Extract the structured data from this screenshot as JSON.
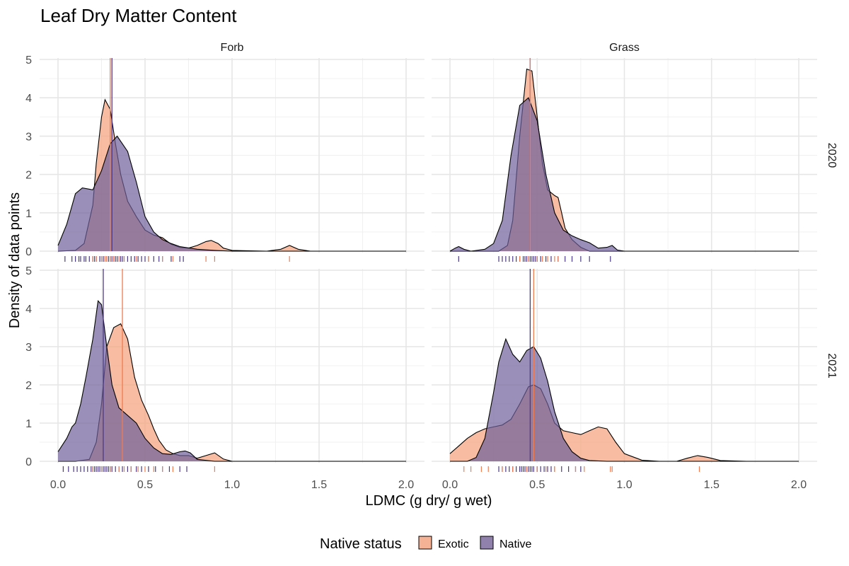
{
  "chart_data": {
    "type": "area",
    "title": "Leaf Dry Matter Content",
    "xlabel": "LDMC (g dry/ g wet)",
    "ylabel": "Density of data points",
    "xlim": [
      0,
      2
    ],
    "ylim": [
      0,
      5
    ],
    "x_ticks": [
      "0.0",
      "0.5",
      "1.0",
      "1.5",
      "2.0"
    ],
    "y_ticks": [
      "0",
      "1",
      "2",
      "3",
      "4",
      "5"
    ],
    "grid": true,
    "legend": {
      "title": "Native status",
      "position": "bottom",
      "entries": [
        {
          "label": "Exotic",
          "color": "#f4a582"
        },
        {
          "label": "Native",
          "color": "#7b6a9e"
        }
      ]
    },
    "colors": {
      "exotic_fill": "#f4a582",
      "native_fill": "#6e5f9a",
      "exotic_line": "#f07c50",
      "native_line": "#4b3a86"
    },
    "col_facets": [
      "Forb",
      "Grass"
    ],
    "row_facets": [
      "2020",
      "2021"
    ],
    "panels": [
      {
        "row": "2020",
        "col": "Forb",
        "series": [
          {
            "name": "Native",
            "mean": 0.31,
            "x": [
              0.0,
              0.05,
              0.1,
              0.14,
              0.2,
              0.25,
              0.3,
              0.34,
              0.4,
              0.45,
              0.5,
              0.55,
              0.6,
              0.65,
              0.7,
              0.8,
              0.9,
              1.0,
              2.0
            ],
            "y": [
              0.15,
              0.7,
              1.5,
              1.65,
              1.6,
              2.1,
              2.8,
              3.0,
              2.6,
              1.8,
              0.9,
              0.5,
              0.3,
              0.2,
              0.12,
              0.05,
              0.02,
              0.0,
              0.0
            ]
          },
          {
            "name": "Exotic",
            "mean": 0.3,
            "x": [
              0.0,
              0.1,
              0.15,
              0.2,
              0.22,
              0.25,
              0.27,
              0.3,
              0.33,
              0.36,
              0.4,
              0.45,
              0.5,
              0.55,
              0.6,
              0.65,
              0.7,
              0.75,
              0.8,
              0.85,
              0.88,
              0.92,
              0.95,
              1.0,
              1.2,
              1.28,
              1.33,
              1.38,
              1.45,
              2.0
            ],
            "y": [
              0.0,
              0.02,
              0.2,
              1.2,
              2.3,
              3.5,
              3.95,
              3.7,
              2.8,
              2.0,
              1.3,
              0.9,
              0.55,
              0.42,
              0.35,
              0.18,
              0.1,
              0.08,
              0.15,
              0.25,
              0.28,
              0.2,
              0.08,
              0.02,
              0.0,
              0.05,
              0.15,
              0.05,
              0.0,
              0.0
            ]
          }
        ],
        "rug": {
          "Native": [
            0.04,
            0.08,
            0.1,
            0.12,
            0.13,
            0.15,
            0.16,
            0.18,
            0.2,
            0.21,
            0.22,
            0.24,
            0.25,
            0.26,
            0.27,
            0.28,
            0.29,
            0.3,
            0.31,
            0.32,
            0.33,
            0.34,
            0.35,
            0.36,
            0.37,
            0.38,
            0.4,
            0.42,
            0.44,
            0.46,
            0.48,
            0.5,
            0.52,
            0.55,
            0.58,
            0.6,
            0.65,
            0.7,
            0.72
          ],
          "Exotic": [
            0.2,
            0.22,
            0.25,
            0.27,
            0.28,
            0.3,
            0.32,
            0.35,
            0.38,
            0.45,
            0.52,
            0.6,
            0.66,
            0.85,
            0.9,
            1.33
          ]
        }
      },
      {
        "row": "2020",
        "col": "Grass",
        "series": [
          {
            "name": "Native",
            "mean": 0.46,
            "x": [
              0.0,
              0.03,
              0.05,
              0.08,
              0.12,
              0.2,
              0.25,
              0.3,
              0.35,
              0.4,
              0.45,
              0.5,
              0.55,
              0.6,
              0.65,
              0.7,
              0.75,
              0.8,
              0.85,
              0.9,
              0.93,
              0.96,
              1.0,
              2.0
            ],
            "y": [
              0.0,
              0.08,
              0.12,
              0.05,
              0.0,
              0.05,
              0.2,
              0.8,
              2.5,
              3.8,
              4.0,
              3.4,
              2.0,
              1.0,
              0.55,
              0.4,
              0.3,
              0.22,
              0.08,
              0.1,
              0.15,
              0.03,
              0.0,
              0.0
            ]
          },
          {
            "name": "Exotic",
            "mean": 0.46,
            "x": [
              0.0,
              0.28,
              0.33,
              0.36,
              0.4,
              0.44,
              0.47,
              0.5,
              0.53,
              0.56,
              0.6,
              0.62,
              0.64,
              0.66,
              0.7,
              0.75,
              0.8,
              2.0
            ],
            "y": [
              0.0,
              0.0,
              0.15,
              0.8,
              3.0,
              4.75,
              4.7,
              3.5,
              2.3,
              1.6,
              1.45,
              1.4,
              1.0,
              0.6,
              0.3,
              0.1,
              0.0,
              0.0
            ]
          }
        ],
        "rug": {
          "Native": [
            0.05,
            0.28,
            0.3,
            0.32,
            0.34,
            0.36,
            0.38,
            0.4,
            0.42,
            0.43,
            0.44,
            0.45,
            0.46,
            0.47,
            0.48,
            0.49,
            0.5,
            0.52,
            0.55,
            0.58,
            0.62,
            0.66,
            0.7,
            0.75,
            0.8,
            0.92
          ],
          "Exotic": [
            0.4,
            0.45,
            0.5,
            0.53,
            0.56,
            0.6,
            0.62
          ]
        }
      },
      {
        "row": "2021",
        "col": "Forb",
        "series": [
          {
            "name": "Native",
            "mean": 0.26,
            "x": [
              0.0,
              0.05,
              0.08,
              0.1,
              0.13,
              0.16,
              0.2,
              0.23,
              0.25,
              0.28,
              0.31,
              0.35,
              0.4,
              0.45,
              0.5,
              0.55,
              0.6,
              0.65,
              0.7,
              0.73,
              0.76,
              0.8,
              0.9,
              2.0
            ],
            "y": [
              0.25,
              0.6,
              0.9,
              1.0,
              1.5,
              2.2,
              3.2,
              4.2,
              4.1,
              3.0,
              2.0,
              1.4,
              1.2,
              1.0,
              0.6,
              0.35,
              0.2,
              0.18,
              0.25,
              0.27,
              0.22,
              0.05,
              0.0,
              0.0
            ]
          },
          {
            "name": "Exotic",
            "mean": 0.37,
            "x": [
              0.0,
              0.1,
              0.18,
              0.22,
              0.25,
              0.28,
              0.32,
              0.36,
              0.4,
              0.44,
              0.48,
              0.52,
              0.55,
              0.58,
              0.62,
              0.66,
              0.7,
              0.75,
              0.8,
              0.85,
              0.9,
              0.95,
              1.0,
              2.0
            ],
            "y": [
              0.0,
              0.0,
              0.05,
              0.5,
              1.5,
              3.0,
              3.5,
              3.6,
              3.2,
              2.2,
              1.6,
              1.2,
              0.85,
              0.55,
              0.3,
              0.2,
              0.15,
              0.15,
              0.08,
              0.15,
              0.22,
              0.06,
              0.0,
              0.0
            ]
          }
        ],
        "rug": {
          "Native": [
            0.03,
            0.06,
            0.09,
            0.11,
            0.13,
            0.15,
            0.17,
            0.19,
            0.2,
            0.21,
            0.22,
            0.23,
            0.24,
            0.25,
            0.26,
            0.27,
            0.28,
            0.29,
            0.3,
            0.31,
            0.33,
            0.35,
            0.37,
            0.4,
            0.42,
            0.45,
            0.48,
            0.52,
            0.56,
            0.6,
            0.64,
            0.7,
            0.74
          ],
          "Exotic": [
            0.2,
            0.25,
            0.3,
            0.35,
            0.38,
            0.42,
            0.46,
            0.5,
            0.55,
            0.6,
            0.66,
            0.9
          ]
        }
      },
      {
        "row": "2021",
        "col": "Grass",
        "series": [
          {
            "name": "Native",
            "mean": 0.46,
            "x": [
              0.0,
              0.1,
              0.15,
              0.2,
              0.25,
              0.28,
              0.32,
              0.36,
              0.4,
              0.44,
              0.48,
              0.52,
              0.56,
              0.6,
              0.65,
              0.7,
              0.75,
              0.8,
              0.9,
              1.0,
              2.0
            ],
            "y": [
              0.0,
              0.0,
              0.1,
              0.6,
              1.8,
              2.6,
              3.2,
              2.8,
              2.6,
              2.9,
              3.0,
              2.7,
              2.1,
              1.3,
              0.6,
              0.25,
              0.08,
              0.02,
              0.0,
              0.0,
              0.0
            ]
          },
          {
            "name": "Exotic",
            "mean": 0.48,
            "x": [
              0.0,
              0.05,
              0.1,
              0.15,
              0.2,
              0.25,
              0.3,
              0.35,
              0.4,
              0.45,
              0.48,
              0.52,
              0.56,
              0.6,
              0.65,
              0.7,
              0.75,
              0.8,
              0.85,
              0.9,
              0.95,
              1.0,
              1.1,
              1.2,
              1.3,
              1.36,
              1.42,
              1.48,
              1.55,
              1.7,
              2.0
            ],
            "y": [
              0.2,
              0.4,
              0.6,
              0.75,
              0.85,
              0.9,
              0.95,
              1.1,
              1.5,
              1.95,
              2.0,
              1.9,
              1.5,
              1.0,
              0.8,
              0.75,
              0.7,
              0.8,
              0.9,
              0.85,
              0.5,
              0.2,
              0.03,
              0.0,
              0.0,
              0.08,
              0.15,
              0.1,
              0.02,
              0.0,
              0.0
            ]
          }
        ],
        "rug": {
          "Native": [
            0.28,
            0.3,
            0.32,
            0.34,
            0.36,
            0.38,
            0.4,
            0.41,
            0.42,
            0.43,
            0.44,
            0.45,
            0.46,
            0.47,
            0.48,
            0.5,
            0.52,
            0.54,
            0.56,
            0.58,
            0.6,
            0.64,
            0.68,
            0.72,
            0.75
          ],
          "Exotic": [
            0.08,
            0.12,
            0.18,
            0.22,
            0.3,
            0.36,
            0.44,
            0.5,
            0.55,
            0.6,
            0.72,
            0.77,
            0.92,
            0.93,
            1.43
          ]
        }
      }
    ]
  }
}
